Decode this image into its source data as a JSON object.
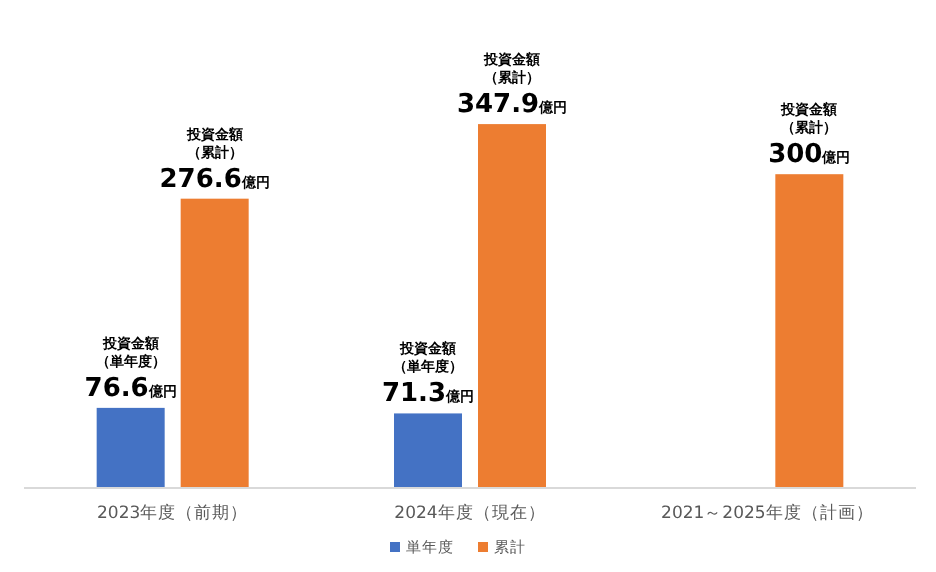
{
  "chart_data": {
    "type": "bar",
    "categories": [
      "2023年度（前期）",
      "2024年度（現在）",
      "2021～2025年度（計画）"
    ],
    "series": [
      {
        "name": "単年度",
        "color": "#4472c4",
        "values": [
          76.6,
          71.3,
          null
        ],
        "value_labels": [
          "76.6億円",
          "71.3億円",
          null
        ]
      },
      {
        "name": "累計",
        "color": "#ed7d31",
        "values": [
          276.6,
          347.9,
          300
        ],
        "value_labels": [
          "276.6億円",
          "347.9億円",
          "300億円"
        ]
      }
    ],
    "annotations": [
      {
        "text": "投資金額（単年度）",
        "x": "2023年度（前期）",
        "y": 76.6
      },
      {
        "text": "投資金額（累計）",
        "x": "2023年度（前期）",
        "y": 276.6
      },
      {
        "text": "投資金額（単年度）",
        "x": "2024年度（現在）",
        "y": 71.3
      },
      {
        "text": "投資金額（累計）",
        "x": "2024年度（現在）",
        "y": 347.9
      },
      {
        "text": "投資金額（累計）",
        "x": "2021～2025年度（計画）",
        "y": 300
      }
    ],
    "legend": "bottom"
  }
}
